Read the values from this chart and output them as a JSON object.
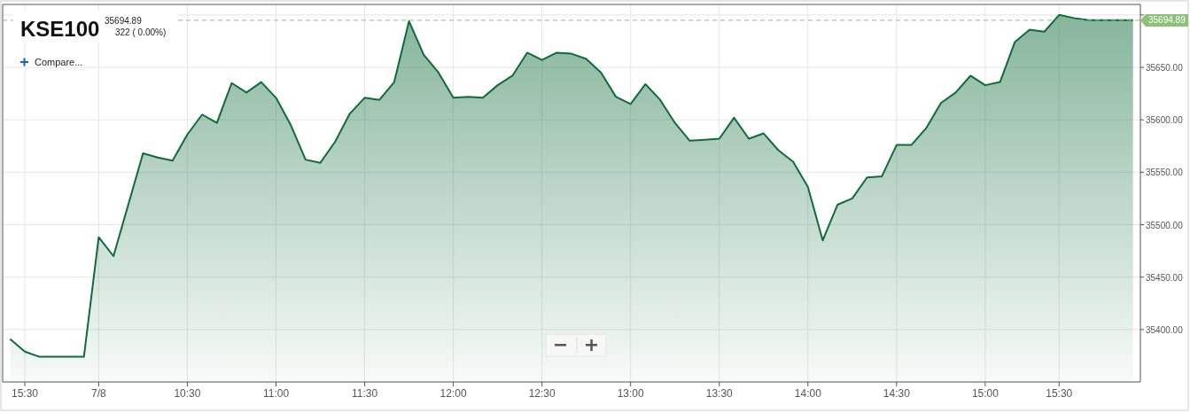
{
  "chart_data": {
    "type": "area",
    "title": "KSE100",
    "subtitle": "35694.89",
    "annotations": [
      "322 ( 0.00%)",
      "Compare..."
    ],
    "categories": [
      null,
      "15:30",
      null,
      null,
      null,
      null,
      "7/8",
      null,
      null,
      null,
      null,
      null,
      "10:30",
      null,
      null,
      null,
      null,
      null,
      "11:00",
      null,
      null,
      null,
      null,
      null,
      "11:30",
      null,
      null,
      null,
      null,
      null,
      "12:00",
      null,
      null,
      null,
      null,
      null,
      "12:30",
      null,
      null,
      null,
      null,
      null,
      "13:00",
      null,
      null,
      null,
      null,
      null,
      "13:30",
      null,
      null,
      null,
      null,
      null,
      "14:00",
      null,
      null,
      null,
      null,
      null,
      "14:30",
      null,
      null,
      null,
      null,
      null,
      "15:00",
      null,
      null,
      null,
      null,
      "15:30",
      null,
      null,
      null,
      null,
      null
    ],
    "series": [
      {
        "color": "#0e6b3a",
        "values": [
          35391,
          35379,
          35374,
          35374,
          35374,
          35374,
          35488,
          35470,
          35519,
          35568,
          35564,
          35561,
          35586,
          35605,
          35597,
          35635,
          35626,
          35636,
          35621,
          35595,
          35562,
          35559,
          35579,
          35606,
          35621,
          35619,
          35636,
          35694,
          35662,
          35645,
          35621,
          35622,
          35621,
          35633,
          35642,
          35664,
          35657,
          35664,
          35663,
          35658,
          35645,
          35622,
          35615,
          35634,
          35619,
          35597,
          35580,
          35581,
          35582,
          35602,
          35582,
          35587,
          35571,
          35560,
          35536,
          35485,
          35519,
          35525,
          35545,
          35546,
          35576,
          35576,
          35592,
          35616,
          35626,
          35642,
          35633,
          35636,
          35674,
          35686,
          35684,
          35700,
          35697,
          35695,
          35695,
          35695,
          35695
        ]
      }
    ],
    "ylim": [
      35350,
      35710
    ],
    "yticks": [
      {
        "value": 35400,
        "label": "35400.00"
      },
      {
        "value": 35450,
        "label": "35450.00"
      },
      {
        "value": 35500,
        "label": "35500.00"
      },
      {
        "value": 35550,
        "label": "35550.00"
      },
      {
        "value": 35600,
        "label": "35600.00"
      },
      {
        "value": 35650,
        "label": "35650.00"
      },
      {
        "value": 35700,
        "label": null
      }
    ],
    "ref_lines": [
      {
        "axis": "y",
        "value": 35694.89,
        "label": "35694.89",
        "color": "#8dc07a",
        "line_style": "dashed"
      }
    ],
    "grid": true,
    "marker": "none",
    "line_style": "solid"
  }
}
